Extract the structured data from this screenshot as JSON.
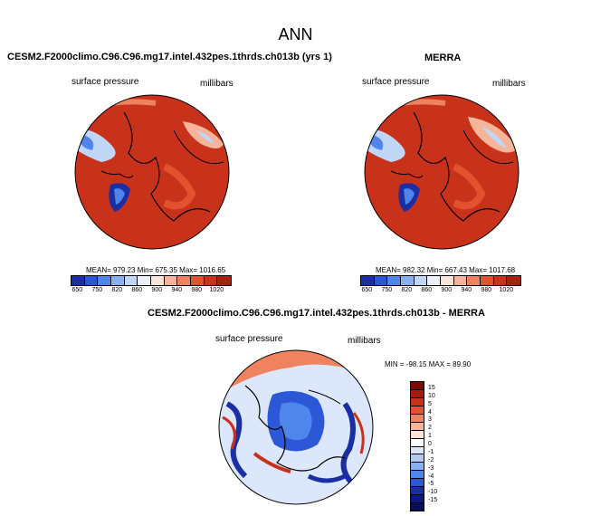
{
  "main_title": "ANN",
  "panels": [
    {
      "title": "CESM2.F2000climo.C96.C96.mg17.intel.432pes.1thrds.ch013b (yrs 1)",
      "left_label": "surface pressure",
      "right_label": "millibars",
      "stats": "MEAN= 979.23  Min= 675.35  Max= 1016.65"
    },
    {
      "title": "MERRA",
      "left_label": "surface pressure",
      "right_label": "millibars",
      "stats": "MEAN= 982.32  Min= 667.43  Max= 1017.68"
    },
    {
      "title": "CESM2.F2000climo.C96.C96.mg17.intel.432pes.1thrds.ch013b - MERRA",
      "left_label": "surface pressure",
      "right_label": "millibars",
      "stats": "MIN = -98.15 MAX =  89.90"
    }
  ],
  "chart_data": [
    {
      "type": "heatmap",
      "projection": "north polar stereographic",
      "title": "CESM2.F2000climo.C96.C96.mg17.intel.432pes.1thrds.ch013b (yrs 1)",
      "variable": "surface pressure",
      "units": "millibars",
      "mean": 979.23,
      "min": 675.35,
      "max": 1016.65,
      "colorbar_labels": [
        "650",
        "750",
        "820",
        "860",
        "900",
        "940",
        "980",
        "1020"
      ],
      "colorbar_colors": [
        "#1a2fa3",
        "#2c57d6",
        "#4f86ec",
        "#86b1f2",
        "#c0d6f7",
        "#ecf1fb",
        "#fbe4d8",
        "#f6b59a",
        "#ef8360",
        "#e2522f",
        "#c8321b",
        "#a4220f"
      ]
    },
    {
      "type": "heatmap",
      "projection": "north polar stereographic",
      "title": "MERRA",
      "variable": "surface pressure",
      "units": "millibars",
      "mean": 982.32,
      "min": 667.43,
      "max": 1017.68,
      "colorbar_labels": [
        "650",
        "750",
        "820",
        "860",
        "900",
        "940",
        "980",
        "1020"
      ],
      "colorbar_colors": [
        "#1a2fa3",
        "#2c57d6",
        "#4f86ec",
        "#86b1f2",
        "#c0d6f7",
        "#ecf1fb",
        "#fbe4d8",
        "#f6b59a",
        "#ef8360",
        "#e2522f",
        "#c8321b",
        "#a4220f"
      ]
    },
    {
      "type": "heatmap",
      "projection": "north polar stereographic",
      "title": "CESM2.F2000climo.C96.C96.mg17.intel.432pes.1thrds.ch013b - MERRA",
      "variable": "surface pressure",
      "units": "millibars",
      "min": -98.15,
      "max": 89.9,
      "colorbar_labels": [
        "15",
        "10",
        "5",
        "4",
        "3",
        "2",
        "1",
        "0",
        "-1",
        "-2",
        "-3",
        "-4",
        "-5",
        "-10",
        "-15"
      ],
      "colorbar_colors": [
        "#7a0a06",
        "#a61a10",
        "#c8321b",
        "#e2522f",
        "#ef8360",
        "#f6b59a",
        "#fbe4d8",
        "#ffffff",
        "#dde7fb",
        "#b3caf3",
        "#86b1f2",
        "#4f86ec",
        "#2c57d6",
        "#1a2fa3",
        "#0c1a7a",
        "#06105a"
      ]
    }
  ]
}
